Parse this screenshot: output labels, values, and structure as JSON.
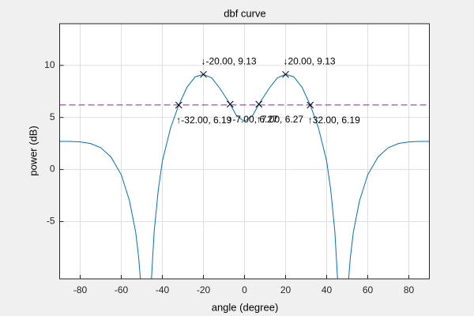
{
  "chart_data": {
    "type": "line",
    "title": "dbf curve",
    "xlabel": "angle (degree)",
    "ylabel": "power (dB)",
    "xlim": [
      -90,
      90
    ],
    "ylim": [
      -10.5,
      14
    ],
    "xticks": [
      -80,
      -60,
      -40,
      -20,
      0,
      20,
      40,
      60,
      80
    ],
    "yticks": [
      -5,
      0,
      5,
      10
    ],
    "grid": true,
    "series": [
      {
        "color": "#0072bd",
        "x": [
          -90,
          -85,
          -80,
          -75,
          -70,
          -65,
          -60,
          -56,
          -53,
          -51.5,
          -50.7,
          null,
          -45.3,
          -44,
          -42,
          -40,
          -36,
          -32,
          -28,
          -24,
          -20,
          -16,
          -12,
          -7,
          -4,
          0,
          4,
          7,
          12,
          16,
          20,
          24,
          28,
          32,
          36,
          40,
          42,
          44,
          45.3,
          null,
          50.7,
          51.5,
          53,
          56,
          60,
          65,
          70,
          75,
          80,
          85,
          90
        ],
        "values": [
          2.7,
          2.7,
          2.65,
          2.5,
          2.1,
          1.2,
          -0.5,
          -3,
          -6,
          -8.5,
          -10.5,
          null,
          -10.5,
          -6,
          -2,
          0.8,
          4,
          6.19,
          7.9,
          8.9,
          9.13,
          8.8,
          7.8,
          6.27,
          5.2,
          4.6,
          5.2,
          6.27,
          7.8,
          8.8,
          9.13,
          8.9,
          7.9,
          6.19,
          4,
          0.8,
          -2,
          -6,
          -10.5,
          null,
          -10.5,
          -8.5,
          -6,
          -3,
          -0.5,
          1.2,
          2.1,
          2.5,
          2.65,
          2.7,
          2.7
        ]
      }
    ],
    "threshold": {
      "value": 6.2,
      "color": "#7e2f8e"
    },
    "points": [
      {
        "x": -20,
        "y": 9.13,
        "label": "↓-20.00, 9.13",
        "position": "above"
      },
      {
        "x": 20,
        "y": 9.13,
        "label": "↓20.00, 9.13",
        "position": "above"
      },
      {
        "x": -32,
        "y": 6.19,
        "label": "↑-32.00, 6.19",
        "position": "below"
      },
      {
        "x": -7,
        "y": 6.27,
        "label": "↑-7.00, 6.27",
        "position": "below"
      },
      {
        "x": 7,
        "y": 6.27,
        "label": "↑7.00, 6.27",
        "position": "below"
      },
      {
        "x": 32,
        "y": 6.19,
        "label": "↑32.00, 6.19",
        "position": "below"
      }
    ]
  }
}
